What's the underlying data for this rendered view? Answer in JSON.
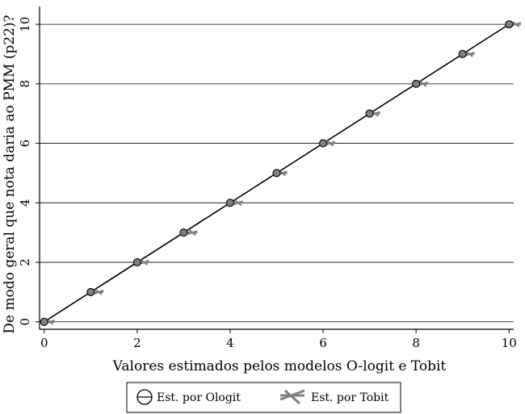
{
  "chart_data": {
    "type": "scatter",
    "xlabel": "Valores estimados pelos modelos O-logit e Tobit",
    "ylabel": "De modo geral que nota daria ao PMM (p22)?",
    "xlim": [
      -0.1,
      10.1
    ],
    "ylim": [
      -0.25,
      10.6
    ],
    "xticks": [
      "0",
      "2",
      "4",
      "6",
      "8",
      "10"
    ],
    "yticks": [
      "0",
      "2",
      "4",
      "6",
      "8",
      "10"
    ],
    "grid": "horizontal",
    "legend_position": "bottom-center",
    "series": [
      {
        "name": "Est. por Ologit",
        "marker": "circle",
        "color": "#808080",
        "x": [
          0,
          1,
          2,
          3,
          4,
          5,
          6,
          7,
          8,
          9,
          10
        ],
        "y": [
          0,
          1,
          2,
          3,
          4,
          5,
          6,
          7,
          8,
          9,
          10
        ]
      },
      {
        "name": "Est. por Tobit",
        "marker": "cross",
        "color": "#808080",
        "x": [
          0.05,
          1.1,
          2.08,
          3.12,
          4.1,
          5.05,
          6.08,
          7.05,
          8.08,
          9.08,
          10.08
        ],
        "y": [
          0,
          1,
          2,
          3,
          4,
          5,
          6,
          7,
          8,
          9,
          10
        ]
      }
    ],
    "fit_line": {
      "x": [
        0,
        10
      ],
      "y": [
        0,
        10
      ],
      "color": "#000000"
    }
  }
}
